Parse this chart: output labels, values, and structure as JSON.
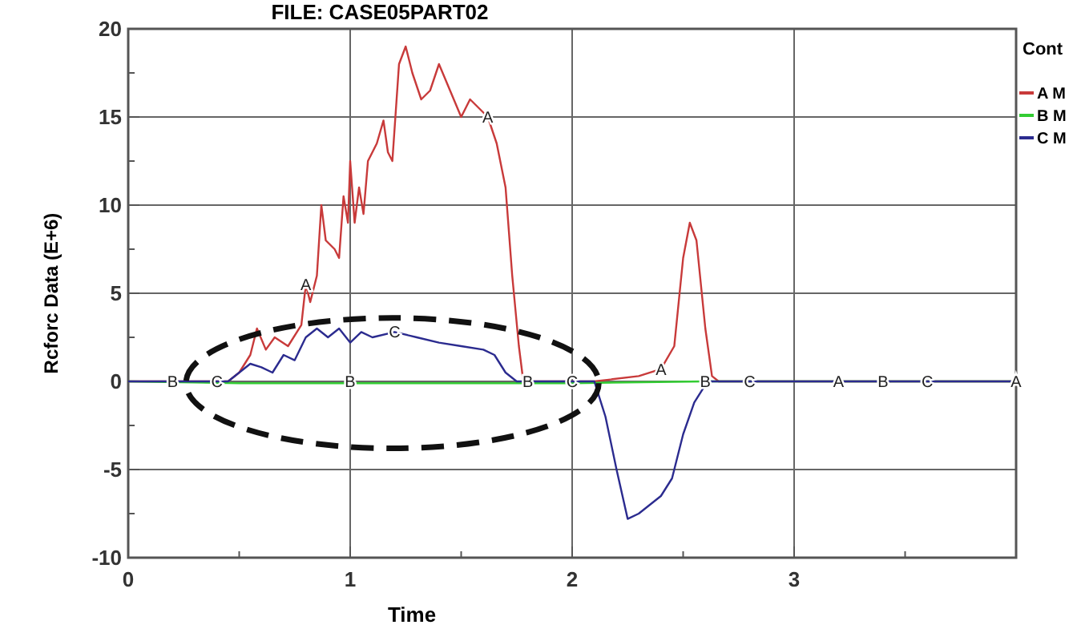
{
  "chart_data": {
    "type": "line",
    "title": "FILE: CASE05PART02",
    "xlabel": "Time",
    "ylabel": "Rcforc Data (E+6)",
    "legend_title": "Cont",
    "legend": "right",
    "xlim": [
      0,
      4
    ],
    "xticks": [
      0,
      1,
      2,
      3,
      {
        "value": 0.5,
        "label": null
      },
      {
        "value": 1.5,
        "label": null
      },
      {
        "value": 2.5,
        "label": null
      },
      {
        "value": 3.5,
        "label": null
      },
      {
        "value": 4,
        "label": null
      }
    ],
    "ylim": [
      -10,
      20
    ],
    "yticks": [
      -10,
      -5,
      0,
      5,
      10,
      15,
      20,
      {
        "value": -7.5,
        "label": null
      },
      {
        "value": -2.5,
        "label": null
      },
      {
        "value": 2.5,
        "label": null
      },
      {
        "value": 7.5,
        "label": null
      },
      {
        "value": 12.5,
        "label": null
      },
      {
        "value": 17.5,
        "label": null
      }
    ],
    "grid": true,
    "marker": "none",
    "line_style": "solid",
    "series": [
      {
        "name": "A M",
        "color": "#c83a3a",
        "x": [
          0,
          0.45,
          0.5,
          0.55,
          0.58,
          0.62,
          0.66,
          0.72,
          0.78,
          0.8,
          0.82,
          0.85,
          0.87,
          0.89,
          0.93,
          0.95,
          0.97,
          0.99,
          1.0,
          1.02,
          1.04,
          1.06,
          1.08,
          1.12,
          1.15,
          1.17,
          1.19,
          1.22,
          1.25,
          1.28,
          1.32,
          1.36,
          1.4,
          1.45,
          1.5,
          1.54,
          1.62,
          1.66,
          1.7,
          1.73,
          1.76,
          1.78,
          2.1,
          2.3,
          2.4,
          2.46,
          2.5,
          2.53,
          2.56,
          2.6,
          2.63,
          2.66,
          4
        ],
        "values": [
          0,
          0,
          0.5,
          1.5,
          3,
          1.8,
          2.5,
          2,
          3.2,
          5.5,
          4.5,
          6,
          10,
          8,
          7.5,
          7,
          10.5,
          9,
          12.5,
          9,
          11,
          9.5,
          12.5,
          13.5,
          14.8,
          13,
          12.5,
          18,
          19,
          17.5,
          16,
          16.5,
          18,
          16.5,
          15,
          16,
          15,
          13.5,
          11,
          6,
          2,
          0,
          0,
          0.3,
          0.7,
          2,
          7,
          9,
          8,
          3,
          0.3,
          0,
          0
        ]
      },
      {
        "name": "B M",
        "color": "#33cc33",
        "x": [
          0,
          0.5,
          1,
          1.5,
          2,
          2.6,
          4
        ],
        "values": [
          0,
          -0.1,
          -0.1,
          -0.1,
          -0.1,
          0,
          0
        ]
      },
      {
        "name": "C M",
        "color": "#2b2b8f",
        "x": [
          0,
          0.45,
          0.5,
          0.55,
          0.6,
          0.65,
          0.7,
          0.75,
          0.8,
          0.85,
          0.9,
          0.95,
          1.0,
          1.05,
          1.1,
          1.2,
          1.3,
          1.4,
          1.5,
          1.6,
          1.65,
          1.7,
          1.75,
          2.1,
          2.15,
          2.2,
          2.25,
          2.3,
          2.4,
          2.45,
          2.5,
          2.55,
          2.6,
          2.62,
          4
        ],
        "values": [
          0,
          0,
          0.5,
          1,
          0.8,
          0.5,
          1.5,
          1.2,
          2.5,
          3,
          2.5,
          3,
          2.2,
          2.8,
          2.5,
          2.8,
          2.5,
          2.2,
          2,
          1.8,
          1.5,
          0.5,
          0,
          0,
          -2,
          -5,
          -7.8,
          -7.5,
          -6.5,
          -5.5,
          -3,
          -1.2,
          -0.2,
          0,
          0
        ]
      }
    ],
    "annotations": [
      {
        "text": "A",
        "x": 0.8,
        "y": 5.5
      },
      {
        "text": "A",
        "x": 1.62,
        "y": 15
      },
      {
        "text": "A",
        "x": 2.4,
        "y": 0.7
      },
      {
        "text": "A",
        "x": 3.2,
        "y": 0
      },
      {
        "text": "A",
        "x": 4,
        "y": 0
      },
      {
        "text": "B",
        "x": 0.2,
        "y": 0
      },
      {
        "text": "B",
        "x": 1.0,
        "y": 0
      },
      {
        "text": "B",
        "x": 1.8,
        "y": 0
      },
      {
        "text": "B",
        "x": 2.6,
        "y": 0
      },
      {
        "text": "B",
        "x": 3.4,
        "y": 0
      },
      {
        "text": "C",
        "x": 0.4,
        "y": 0
      },
      {
        "text": "C",
        "x": 1.2,
        "y": 2.8
      },
      {
        "text": "C",
        "x": 2.0,
        "y": 0
      },
      {
        "text": "C",
        "x": 2.8,
        "y": 0
      },
      {
        "text": "C",
        "x": 3.6,
        "y": 0
      }
    ]
  }
}
